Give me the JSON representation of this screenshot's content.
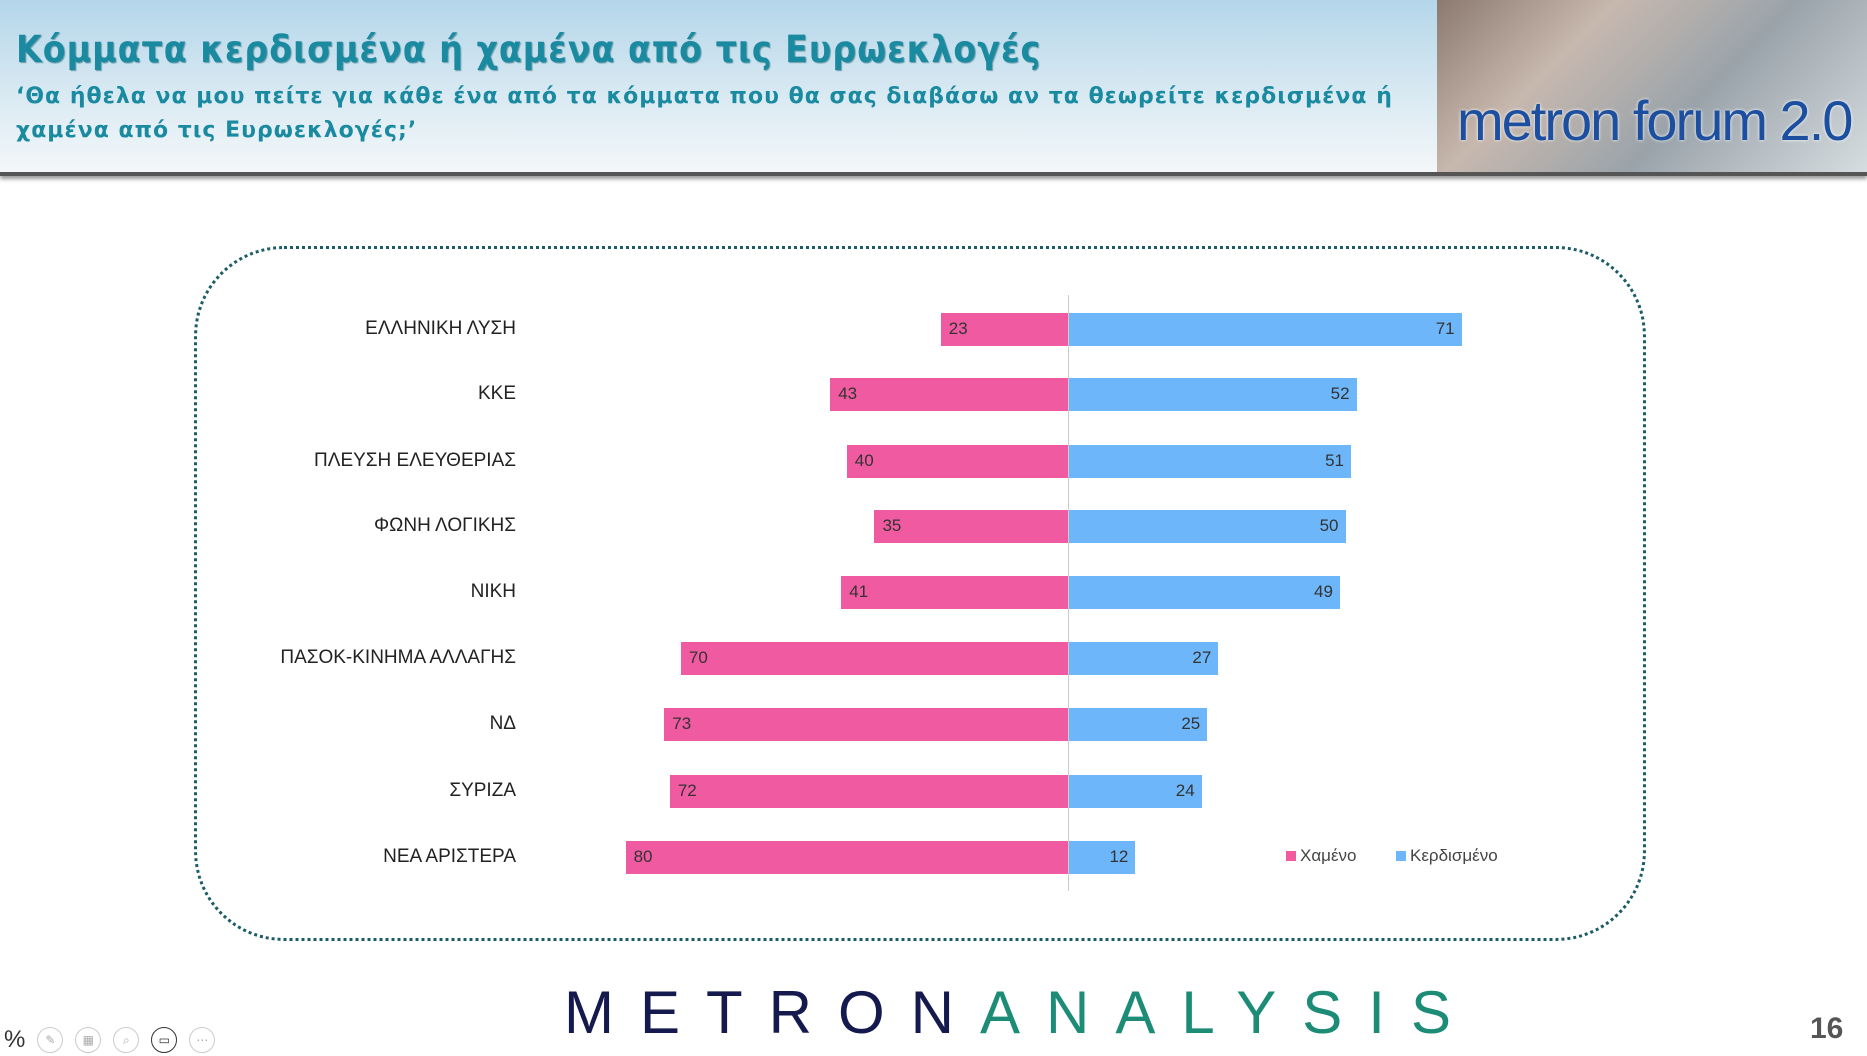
{
  "header": {
    "title": "Κόμματα κερδισμένα ή χαμένα από τις Ευρωεκλογές",
    "subtitle": "‘Θα ήθελα να μου πείτε για κάθε ένα από τα  κόμματα που θα σας διαβάσω αν τα θεωρείτε κερδισμένα ή χαμένα από τις Ευρωεκλογές;’",
    "logo_text": "metron forum 2.0"
  },
  "chart_data": {
    "type": "bar",
    "orientation": "horizontal diverging",
    "categories": [
      "ΕΛΛΗΝΙΚΗ ΛΥΣΗ",
      "ΚΚΕ",
      "ΠΛΕΥΣΗ ΕΛΕΥΘΕΡΙΑΣ",
      "ΦΩΝΗ ΛΟΓΙΚΗΣ",
      "ΝΙΚΗ",
      "ΠΑΣΟΚ-ΚΙΝΗΜΑ ΑΛΛΑΓΗΣ",
      "ΝΔ",
      "ΣΥΡΙΖΑ",
      "ΝΕΑ ΑΡΙΣΤΕΡΑ"
    ],
    "series": [
      {
        "name": "Χαμένο",
        "color": "#F05AA0",
        "values": [
          23,
          43,
          40,
          35,
          41,
          70,
          73,
          72,
          80
        ]
      },
      {
        "name": "Κερδισμένο",
        "color": "#6DB6FA",
        "values": [
          71,
          52,
          51,
          50,
          49,
          27,
          25,
          24,
          12
        ]
      }
    ],
    "legend": "bottom-right",
    "grid": false
  },
  "footer": {
    "brand_part1": "METRON",
    "brand_part2": "ANALYSIS",
    "page_number": "16",
    "toolbar_percent": "%"
  }
}
